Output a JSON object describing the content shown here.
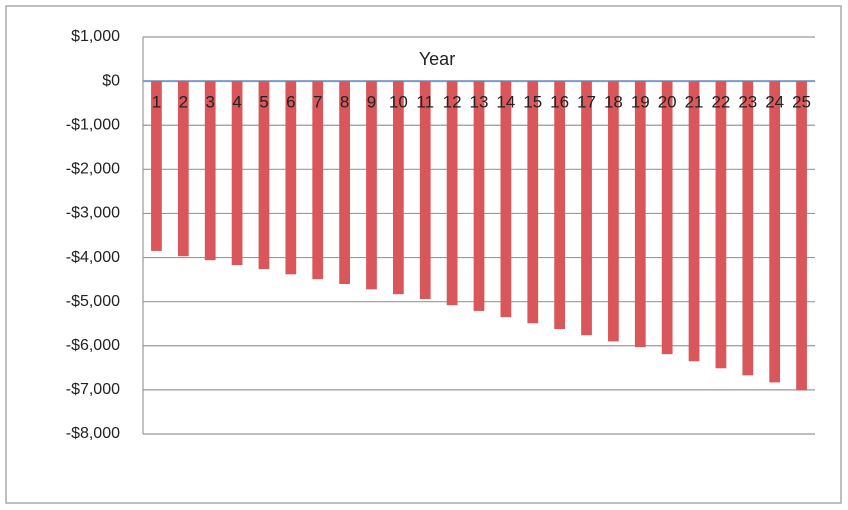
{
  "chart_data": {
    "type": "bar",
    "x_label": "Year",
    "categories": [
      "1",
      "2",
      "3",
      "4",
      "5",
      "6",
      "7",
      "8",
      "9",
      "10",
      "11",
      "12",
      "13",
      "14",
      "15",
      "16",
      "17",
      "18",
      "19",
      "20",
      "21",
      "22",
      "23",
      "24",
      "25"
    ],
    "values": [
      -3850,
      -3970,
      -4060,
      -4170,
      -4260,
      -4380,
      -4490,
      -4600,
      -4720,
      -4830,
      -4940,
      -5080,
      -5210,
      -5350,
      -5490,
      -5620,
      -5760,
      -5900,
      -6030,
      -6190,
      -6350,
      -6510,
      -6670,
      -6830,
      -7010
    ],
    "color": "#d9575a",
    "ylim": [
      -8000,
      1000
    ],
    "yticks": [
      {
        "value": 1000,
        "label": "$1,000"
      },
      {
        "value": 0,
        "label": "$0"
      },
      {
        "value": -1000,
        "label": "-$1,000"
      },
      {
        "value": -2000,
        "label": "-$2,000"
      },
      {
        "value": -3000,
        "label": "-$3,000"
      },
      {
        "value": -4000,
        "label": "-$4,000"
      },
      {
        "value": -5000,
        "label": "-$5,000"
      },
      {
        "value": -6000,
        "label": "-$6,000"
      },
      {
        "value": -7000,
        "label": "-$7,000"
      },
      {
        "value": -8000,
        "label": "-$8,000"
      }
    ],
    "grid": true
  }
}
